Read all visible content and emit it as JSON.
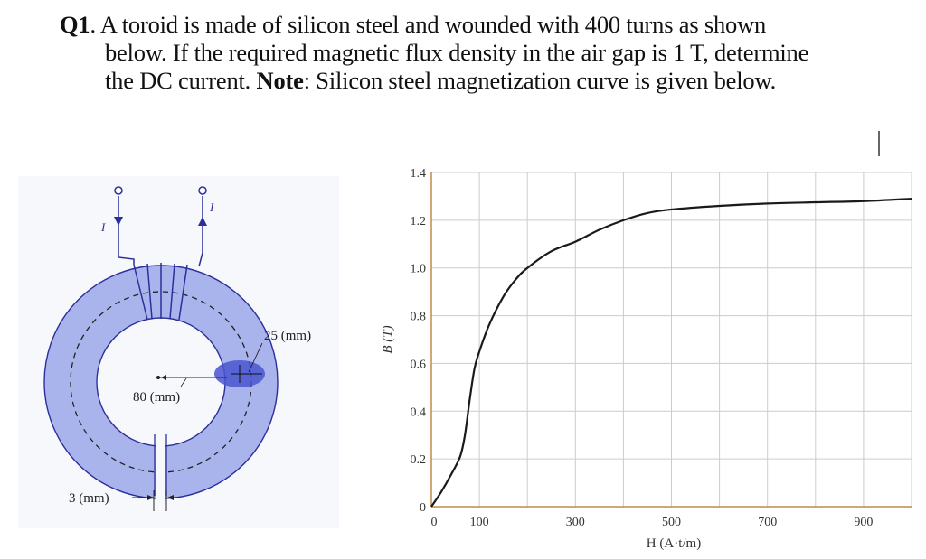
{
  "question": {
    "number": "Q1",
    "line1_rest": ". A toroid is made of silicon steel and wounded with 400 turns as shown",
    "line2": "below. If the required magnetic flux density in the air gap is 1 T, determine",
    "line3_start": "the DC current. ",
    "note_label": "Note",
    "line3_rest": ": Silicon steel magnetization curve is given below."
  },
  "toroid_figure": {
    "current_label_in": "I",
    "current_label_out": "I",
    "cross_section_label": "25 (mm)",
    "radius_label": "80 (mm)",
    "gap_label": "3 (mm)",
    "turns": 400,
    "colors": {
      "core": "#a9b4ec",
      "outline": "#2c2f9a",
      "cross_section": "#4a55d0"
    }
  },
  "chart_data": {
    "type": "line",
    "title": "Silicon steel magnetization curve",
    "xlabel": "H (A·t/m)",
    "ylabel": "B (T)",
    "xlim": [
      0,
      1000
    ],
    "ylim": [
      0,
      1.4
    ],
    "x_ticks": [
      0,
      100,
      300,
      500,
      700,
      900
    ],
    "x_tick_labels": [
      "0",
      "100",
      "300",
      "500",
      "700",
      "900"
    ],
    "x_gridlines": [
      100,
      200,
      300,
      400,
      500,
      600,
      700,
      800,
      900,
      1000
    ],
    "y_ticks": [
      0,
      0.2,
      0.4,
      0.6,
      0.8,
      1.0,
      1.2,
      1.4
    ],
    "y_tick_labels": [
      "0",
      "0.2",
      "0.4",
      "0.6",
      "0.8",
      "1.0",
      "1.2",
      "1.4"
    ],
    "grid": true,
    "legend": null,
    "series": [
      {
        "name": "Silicon steel",
        "x": [
          0,
          20,
          40,
          60,
          70,
          80,
          90,
          100,
          120,
          150,
          175,
          200,
          250,
          300,
          350,
          400,
          450,
          500,
          600,
          700,
          800,
          900,
          1000
        ],
        "y": [
          0,
          0.06,
          0.13,
          0.21,
          0.3,
          0.45,
          0.58,
          0.65,
          0.76,
          0.88,
          0.95,
          1.0,
          1.07,
          1.11,
          1.16,
          1.2,
          1.23,
          1.245,
          1.26,
          1.27,
          1.275,
          1.28,
          1.29
        ]
      }
    ],
    "colors": {
      "curve": "#1a1a1a",
      "grid": "#cccccc",
      "axes": "#c08a4a"
    }
  }
}
